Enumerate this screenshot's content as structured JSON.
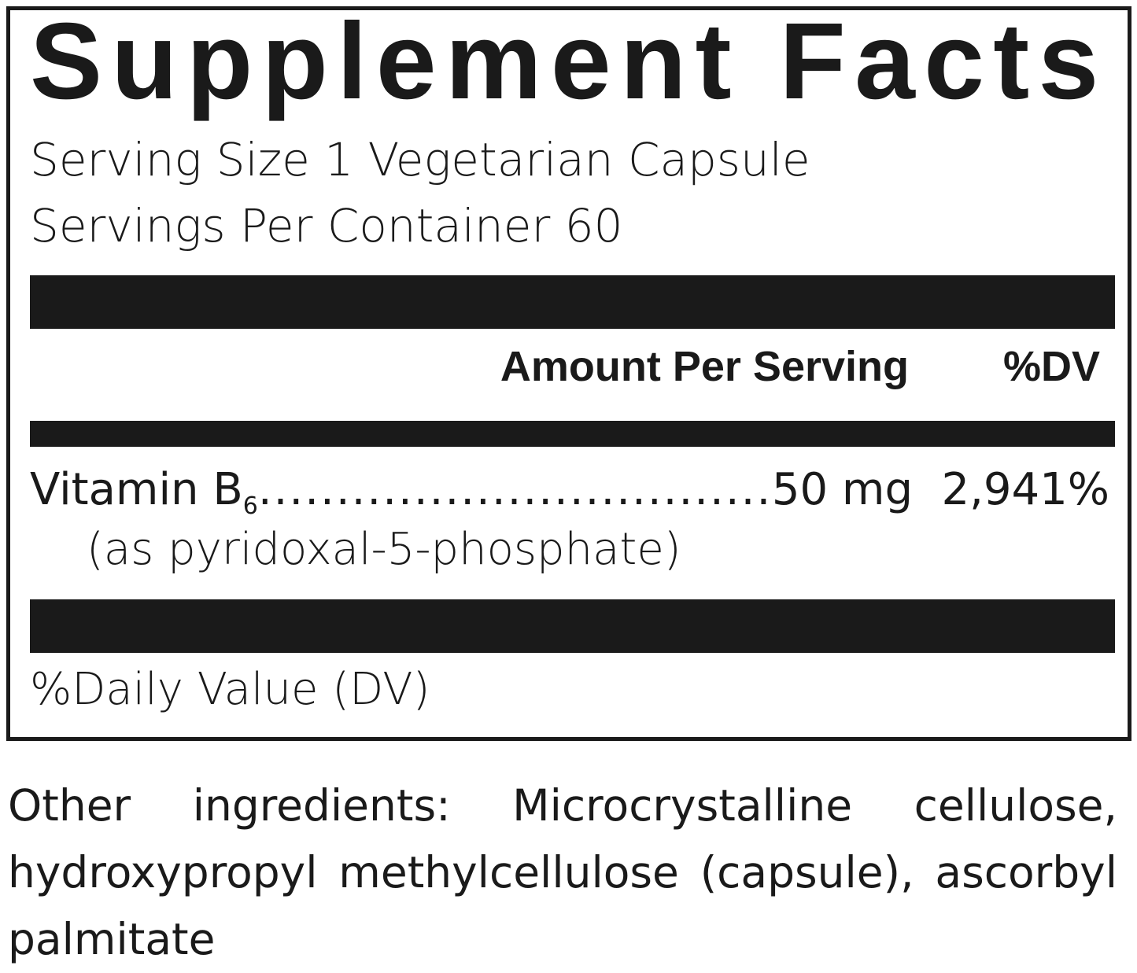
{
  "label": {
    "title": "Supplement Facts",
    "serving_size": "Serving Size 1 Vegetarian Capsule",
    "servings_per_container": "Servings Per Container 60",
    "header": {
      "amount": "Amount Per Serving",
      "dv": "%DV"
    },
    "nutrients": [
      {
        "name": "Vitamin B",
        "subscript": "6",
        "amount": "50 mg",
        "dv": "2,941%",
        "source": "(as pyridoxal-5-phosphate)"
      }
    ],
    "footnote": "%Daily Value (DV)"
  },
  "other_ingredients": "Other ingredients: Microcrystalline cellulose, hydroxypropyl methylcellulose (capsule), ascorbyl palmitate",
  "colors": {
    "ink": "#1a1a1a",
    "background": "#ffffff"
  }
}
